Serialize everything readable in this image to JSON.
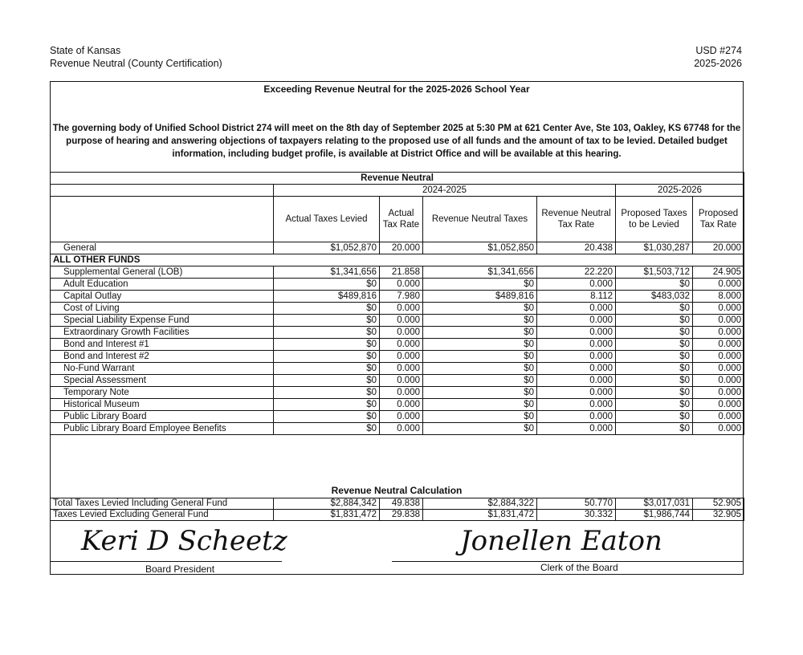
{
  "header": {
    "left_line1": "State of Kansas",
    "left_line2": "Revenue Neutral (County Certification)",
    "right_line1": "USD #274",
    "right_line2": "2025-2026"
  },
  "title": "Exceeding Revenue Neutral for the 2025-2026 School Year",
  "notice": "The governing body of Unified School District 274 will meet on the 8th day of September 2025 at 5:30 PM at 621 Center Ave, Ste 103, Oakley, KS 67748 for the purpose of hearing and answering objections of taxpayers relating to the proposed use of all funds and the amount of tax to be levied. Detailed budget information, including budget profile, is available at District Office and will be available at this hearing.",
  "table": {
    "section_title": "Revenue Neutral",
    "year_prior": "2024-2025",
    "year_current": "2025-2026",
    "columns": [
      "Actual Taxes Levied",
      "Actual Tax Rate",
      "Revenue Neutral Taxes",
      "Revenue Neutral Tax Rate",
      "Proposed Taxes to be Levied",
      "Proposed Tax Rate"
    ],
    "general": {
      "fund": "General",
      "values": [
        "$1,052,870",
        "20.000",
        "$1,052,850",
        "20.438",
        "$1,030,287",
        "20.000"
      ]
    },
    "other_funds_label": "ALL OTHER FUNDS",
    "rows": [
      {
        "fund": "Supplemental General (LOB)",
        "values": [
          "$1,341,656",
          "21.858",
          "$1,341,656",
          "22.220",
          "$1,503,712",
          "24.905"
        ]
      },
      {
        "fund": "Adult Education",
        "values": [
          "$0",
          "0.000",
          "$0",
          "0.000",
          "$0",
          "0.000"
        ]
      },
      {
        "fund": "Capital Outlay",
        "values": [
          "$489,816",
          "7.980",
          "$489,816",
          "8.112",
          "$483,032",
          "8.000"
        ]
      },
      {
        "fund": "Cost of Living",
        "values": [
          "$0",
          "0.000",
          "$0",
          "0.000",
          "$0",
          "0.000"
        ]
      },
      {
        "fund": "Special Liability Expense Fund",
        "values": [
          "$0",
          "0.000",
          "$0",
          "0.000",
          "$0",
          "0.000"
        ]
      },
      {
        "fund": "Extraordinary Growth Facilities",
        "values": [
          "$0",
          "0.000",
          "$0",
          "0.000",
          "$0",
          "0.000"
        ]
      },
      {
        "fund": "Bond and Interest #1",
        "values": [
          "$0",
          "0.000",
          "$0",
          "0.000",
          "$0",
          "0.000"
        ]
      },
      {
        "fund": "Bond and Interest #2",
        "values": [
          "$0",
          "0.000",
          "$0",
          "0.000",
          "$0",
          "0.000"
        ]
      },
      {
        "fund": "No-Fund Warrant",
        "values": [
          "$0",
          "0.000",
          "$0",
          "0.000",
          "$0",
          "0.000"
        ]
      },
      {
        "fund": "Special Assessment",
        "values": [
          "$0",
          "0.000",
          "$0",
          "0.000",
          "$0",
          "0.000"
        ]
      },
      {
        "fund": "Temporary Note",
        "values": [
          "$0",
          "0.000",
          "$0",
          "0.000",
          "$0",
          "0.000"
        ]
      },
      {
        "fund": "Historical Museum",
        "values": [
          "$0",
          "0.000",
          "$0",
          "0.000",
          "$0",
          "0.000"
        ]
      },
      {
        "fund": "Public Library Board",
        "values": [
          "$0",
          "0.000",
          "$0",
          "0.000",
          "$0",
          "0.000"
        ]
      },
      {
        "fund": "Public Library Board Employee Benefits",
        "values": [
          "$0",
          "0.000",
          "$0",
          "0.000",
          "$0",
          "0.000"
        ]
      }
    ]
  },
  "calculation": {
    "title": "Revenue Neutral Calculation",
    "rows": [
      {
        "label": "Total Taxes Levied Including General Fund",
        "values": [
          "$2,884,342",
          "49.838",
          "$2,884,322",
          "50.770",
          "$3,017,031",
          "52.905"
        ]
      },
      {
        "label": "Taxes Levied Excluding General Fund",
        "values": [
          "$1,831,472",
          "29.838",
          "$1,831,472",
          "30.332",
          "$1,986,744",
          "32.905"
        ]
      }
    ]
  },
  "signatures": {
    "president_signature": "Keri D Scheetz",
    "president_label": "Board President",
    "clerk_signature": "Jonellen Eaton",
    "clerk_label": "Clerk of the Board"
  }
}
